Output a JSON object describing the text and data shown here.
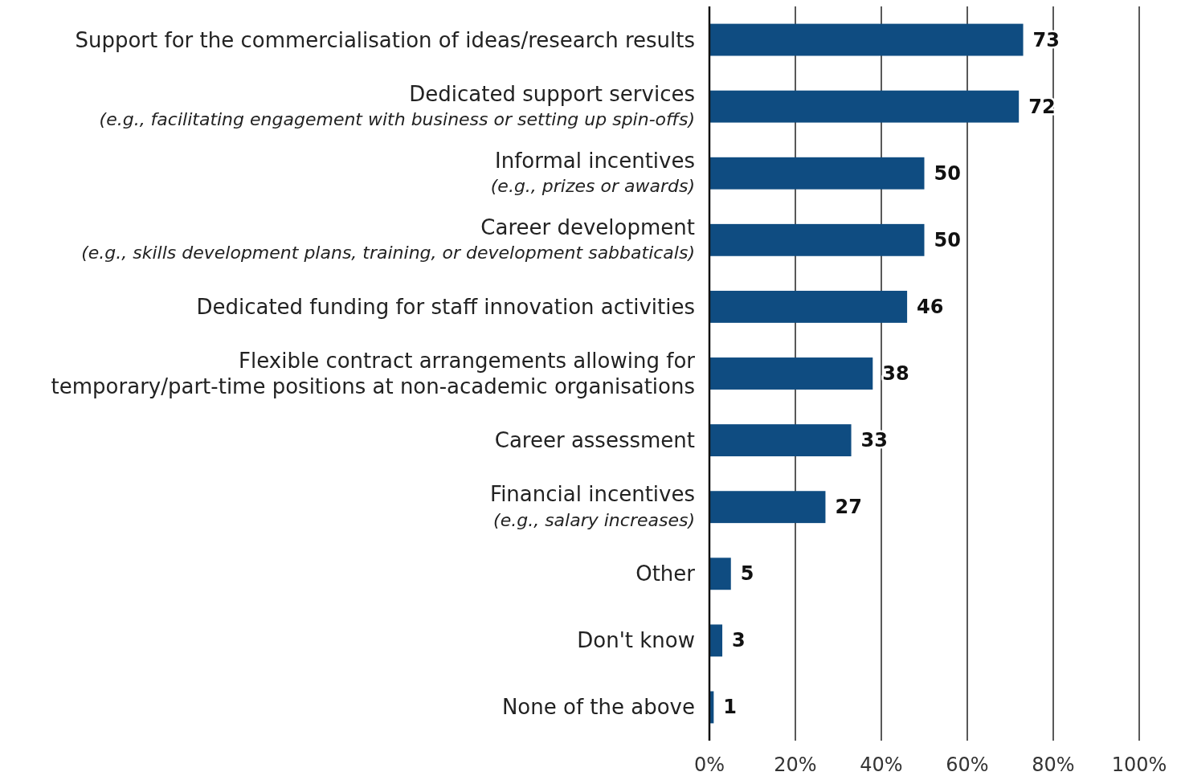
{
  "chart_data": {
    "type": "bar",
    "orientation": "horizontal",
    "categories": [
      "Support for the commercialisation of ideas/research results",
      "Dedicated support services\n(e.g., facilitating engagement with business or setting up spin-offs)",
      "Informal incentives\n(e.g., prizes or awards)",
      "Career development\n(e.g., skills development plans, training, or development sabbaticals)",
      "Dedicated funding for staff innovation activities",
      "Flexible contract arrangements allowing for\ntemporary/part-time positions at non-academic organisations",
      "Career assessment",
      "Financial incentives\n(e.g., salary increases)",
      "Other",
      "Don't know",
      "None of the above"
    ],
    "values": [
      73,
      72,
      50,
      50,
      46,
      38,
      33,
      27,
      5,
      3,
      1
    ],
    "color": "#0f4c81",
    "xlim": [
      0,
      100
    ],
    "xticks": [
      {
        "value": 0,
        "label": "0%"
      },
      {
        "value": 20,
        "label": "20%"
      },
      {
        "value": 40,
        "label": "40%"
      },
      {
        "value": 60,
        "label": "60%"
      },
      {
        "value": 80,
        "label": "80%"
      },
      {
        "value": 100,
        "label": "100%"
      }
    ],
    "grid": "x",
    "data_labels": true
  }
}
